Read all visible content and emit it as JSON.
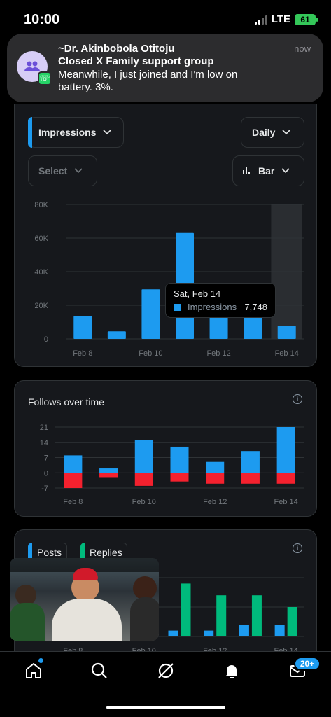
{
  "status": {
    "time": "10:00",
    "network": "LTE",
    "battery": "61"
  },
  "notification": {
    "title": "~Dr. Akinbobola Otitoju",
    "subtitle": "Closed X Family support group",
    "body": "Meanwhile, I just joined and I'm low on battery. 3%.",
    "time": "now"
  },
  "controls": {
    "metric": "Impressions",
    "interval": "Daily",
    "compare": "Select",
    "chart_type": "Bar"
  },
  "tooltip": {
    "date": "Sat, Feb 14",
    "label": "Impressions",
    "value": "7,748"
  },
  "follows_card": {
    "title": "Follows over time"
  },
  "posts_card": {
    "legend_posts": "Posts",
    "legend_replies": "Replies"
  },
  "nav": {
    "badge": "20+"
  },
  "colors": {
    "accent": "#1d9bf0",
    "negative": "#f4212e",
    "replies": "#00ba7c"
  },
  "chart_data": [
    {
      "type": "bar",
      "categories": [
        "Feb 8",
        "Feb 9",
        "Feb 10",
        "Feb 11",
        "Feb 12",
        "Feb 13",
        "Feb 14"
      ],
      "tick_labels": [
        "Feb 8",
        "",
        "Feb 10",
        "",
        "Feb 12",
        "",
        "Feb 14"
      ],
      "y_tick_labels": [
        "0",
        "20K",
        "40K",
        "60K",
        "80K"
      ],
      "values": [
        13500,
        4500,
        29500,
        63000,
        17000,
        18000,
        7748
      ],
      "ylim": [
        0,
        80000
      ],
      "highlight_index": 6,
      "grid": true
    },
    {
      "type": "bar",
      "categories": [
        "Feb 8",
        "Feb 9",
        "Feb 10",
        "Feb 11",
        "Feb 12",
        "Feb 13",
        "Feb 14"
      ],
      "tick_labels": [
        "Feb 8",
        "",
        "Feb 10",
        "",
        "Feb 12",
        "",
        "Feb 14"
      ],
      "y_tick_labels": [
        "-7",
        "0",
        "7",
        "14",
        "21"
      ],
      "series": [
        {
          "values": [
            8,
            2,
            15,
            12,
            5,
            10,
            21
          ]
        },
        {
          "values": [
            -7,
            -2,
            -6,
            -4,
            -5,
            -5,
            -5
          ]
        }
      ],
      "ylim": [
        -7,
        21
      ],
      "grid": true
    },
    {
      "type": "bar",
      "categories": [
        "Feb 8",
        "Feb 9",
        "Feb 10",
        "Feb 11",
        "Feb 12",
        "Feb 13",
        "Feb 14"
      ],
      "tick_labels": [
        "Feb 8",
        "",
        "Feb 10",
        "",
        "Feb 12",
        "",
        "Feb 14"
      ],
      "series": [
        {
          "name": "Posts",
          "values": [
            null,
            null,
            null,
            1,
            1,
            2,
            2
          ]
        },
        {
          "name": "Replies",
          "values": [
            null,
            null,
            null,
            9,
            7,
            7,
            5
          ]
        }
      ],
      "grid": true
    }
  ]
}
